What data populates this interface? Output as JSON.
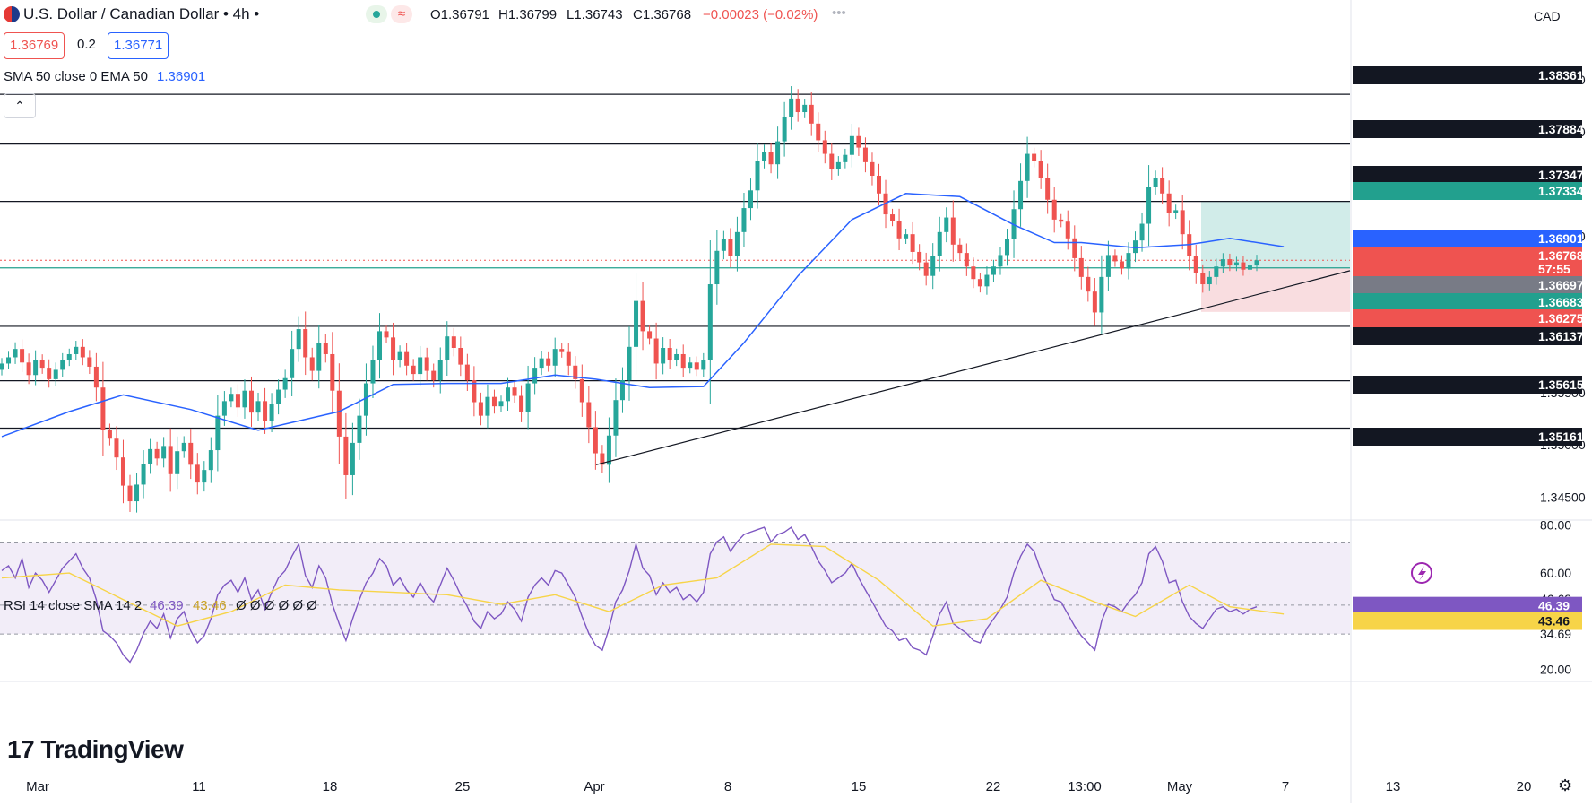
{
  "header": {
    "title": "U.S. Dollar / Canadian Dollar • 4h •",
    "ohlc": {
      "open": "O1.36791",
      "high": "H1.36799",
      "low": "L1.36743",
      "close": "C1.36768",
      "change": "−0.00023 (−0.02%)"
    },
    "more": "•••",
    "bid": "1.36769",
    "spread": "0.2",
    "ask": "1.36771",
    "indicator_label": "SMA 50 close 0 EMA 50",
    "indicator_value": "1.36901",
    "currency": "CAD"
  },
  "logo": "TradingView",
  "colors": {
    "up": "#26a69a",
    "down": "#ef5350",
    "ma": "#2962ff",
    "rsi": "#7e57c2",
    "rsi_ma": "#f7d448",
    "target_zone": "#b2dfdb",
    "stop_zone": "#f8d7da"
  },
  "icons": [
    "flag-icon",
    "live-status-icon",
    "wave-icon",
    "chevron-up-icon",
    "lightning-icon",
    "gear-icon"
  ],
  "chart_data": [
    {
      "type": "candlestick",
      "title": "U.S. Dollar / Canadian Dollar • 4h",
      "ylim": [
        1.3428,
        1.3868
      ],
      "y_ticks": [
        "1.38500",
        "1.38000",
        "1.37000",
        "1.35500",
        "1.35000",
        "1.34500"
      ],
      "x_labels": [
        "Mar",
        "11",
        "18",
        "25",
        "Apr",
        "8",
        "15",
        "22",
        "13:00",
        "May",
        "7",
        "13",
        "20"
      ],
      "closes": [
        1.3578,
        1.3584,
        1.3592,
        1.3579,
        1.3567,
        1.3581,
        1.3574,
        1.3563,
        1.3572,
        1.3581,
        1.3587,
        1.3594,
        1.3584,
        1.3575,
        1.3555,
        1.3514,
        1.3506,
        1.3488,
        1.3461,
        1.3446,
        1.3462,
        1.3482,
        1.3496,
        1.3487,
        1.3499,
        1.3472,
        1.3494,
        1.3502,
        1.3481,
        1.3464,
        1.3476,
        1.3495,
        1.3528,
        1.3542,
        1.3549,
        1.3536,
        1.3552,
        1.3531,
        1.3542,
        1.3523,
        1.3539,
        1.3553,
        1.3564,
        1.3592,
        1.3611,
        1.3584,
        1.3571,
        1.3598,
        1.3587,
        1.3552,
        1.3508,
        1.3471,
        1.3502,
        1.3528,
        1.3559,
        1.3581,
        1.3609,
        1.3603,
        1.3581,
        1.3589,
        1.3576,
        1.3568,
        1.3584,
        1.3571,
        1.3562,
        1.3581,
        1.3604,
        1.3593,
        1.3577,
        1.3562,
        1.3541,
        1.3528,
        1.3546,
        1.3537,
        1.3542,
        1.3555,
        1.3547,
        1.3532,
        1.3559,
        1.3574,
        1.3583,
        1.3576,
        1.3592,
        1.3589,
        1.3576,
        1.3563,
        1.3541,
        1.3517,
        1.3492,
        1.3481,
        1.3509,
        1.3543,
        1.3562,
        1.3594,
        1.3638,
        1.3609,
        1.3602,
        1.3578,
        1.3593,
        1.3581,
        1.3587,
        1.3574,
        1.3579,
        1.3572,
        1.3581,
        1.3654,
        1.3686,
        1.3697,
        1.3681,
        1.3704,
        1.3727,
        1.3744,
        1.3772,
        1.3781,
        1.3769,
        1.3791,
        1.3814,
        1.3832,
        1.3819,
        1.3826,
        1.3808,
        1.3792,
        1.3779,
        1.3764,
        1.3771,
        1.3778,
        1.3796,
        1.3785,
        1.3771,
        1.3758,
        1.3741,
        1.3721,
        1.3715,
        1.3698,
        1.3702,
        1.3685,
        1.3675,
        1.3662,
        1.3681,
        1.3704,
        1.3718,
        1.3692,
        1.3684,
        1.3671,
        1.3659,
        1.3652,
        1.3663,
        1.3671,
        1.3682,
        1.3697,
        1.3726,
        1.3753,
        1.3779,
        1.3772,
        1.3756,
        1.3735,
        1.3716,
        1.3714,
        1.3698,
        1.3679,
        1.3661,
        1.3647,
        1.3627,
        1.3661,
        1.3682,
        1.3676,
        1.3669,
        1.3684,
        1.3696,
        1.3712,
        1.3747,
        1.3756,
        1.3741,
        1.3722,
        1.3725,
        1.3702,
        1.3681,
        1.3665,
        1.3654,
        1.3661,
        1.3671,
        1.3678,
        1.3672,
        1.3675,
        1.3668,
        1.3672,
        1.3677
      ],
      "sma50_anchor_points": [
        [
          0,
          1.3508
        ],
        [
          10,
          1.3532
        ],
        [
          18,
          1.3548
        ],
        [
          28,
          1.3534
        ],
        [
          38,
          1.3514
        ],
        [
          50,
          1.3532
        ],
        [
          58,
          1.3558
        ],
        [
          66,
          1.3559
        ],
        [
          74,
          1.3559
        ],
        [
          82,
          1.3567
        ],
        [
          88,
          1.3563
        ],
        [
          96,
          1.3555
        ],
        [
          104,
          1.3556
        ],
        [
          110,
          1.3598
        ],
        [
          118,
          1.3662
        ],
        [
          126,
          1.3716
        ],
        [
          134,
          1.3741
        ],
        [
          142,
          1.3738
        ],
        [
          150,
          1.3711
        ],
        [
          156,
          1.3694
        ],
        [
          160,
          1.3694
        ],
        [
          168,
          1.3689
        ],
        [
          176,
          1.3692
        ],
        [
          182,
          1.3698
        ],
        [
          190,
          1.369
        ]
      ],
      "levels": [
        "1.38361",
        "1.37884",
        "1.37334",
        "1.36697",
        "1.36137",
        "1.35615",
        "1.35161"
      ],
      "trendline": [
        [
          1.3481,
          "Apr 5"
        ],
        [
          1.3667,
          "May 16"
        ]
      ],
      "position": {
        "target": "1.37334",
        "entry": "1.36697",
        "stop": "1.36275"
      },
      "axis_badges": [
        {
          "label": "1.38361",
          "bg": "#131722"
        },
        {
          "label": "1.37884",
          "bg": "#131722"
        },
        {
          "label": "1.37347",
          "bg": "#131722"
        },
        {
          "label": "1.37334",
          "bg": "#22a08e"
        },
        {
          "label": "1.36901",
          "bg": "#2962ff"
        },
        {
          "label": "1.36768",
          "bg": "#ef5350"
        },
        {
          "label": "57:55",
          "bg": "#ef5350"
        },
        {
          "label": "1.36697",
          "bg": "#787b86"
        },
        {
          "label": "1.36683",
          "bg": "#22a08e"
        },
        {
          "label": "1.36275",
          "bg": "#ef5350"
        },
        {
          "label": "1.36137",
          "bg": "#131722"
        },
        {
          "label": "1.35615",
          "bg": "#131722"
        },
        {
          "label": "1.35161",
          "bg": "#131722"
        }
      ]
    },
    {
      "type": "line",
      "title": "RSI 14 close SMA 14 2",
      "rsi_value": "46.39",
      "rsi_ma_value": "43.46",
      "placeholders": "Ø Ø Ø Ø Ø Ø",
      "ylim": [
        15,
        82
      ],
      "y_ticks": [
        "80.00",
        "60.00",
        "20.00"
      ],
      "band": [
        34.69,
        72.5
      ],
      "mid_line": 46.68,
      "tick_badges": {
        "upper_mid": "46.68",
        "lower": "34.69"
      },
      "rsi_values": [
        61,
        63,
        58,
        66,
        54,
        60,
        57,
        52,
        57,
        62,
        65,
        68,
        62,
        58,
        49,
        36,
        34,
        31,
        26,
        23,
        28,
        35,
        40,
        37,
        43,
        33,
        41,
        44,
        36,
        31,
        34,
        41,
        51,
        55,
        57,
        52,
        58,
        49,
        53,
        45,
        52,
        58,
        61,
        67,
        72,
        59,
        54,
        63,
        58,
        47,
        39,
        32,
        41,
        49,
        56,
        60,
        66,
        63,
        55,
        58,
        53,
        50,
        56,
        51,
        48,
        55,
        62,
        57,
        51,
        46,
        40,
        37,
        44,
        41,
        43,
        48,
        45,
        40,
        50,
        55,
        58,
        55,
        61,
        60,
        55,
        50,
        42,
        35,
        30,
        28,
        37,
        48,
        53,
        61,
        72,
        62,
        59,
        51,
        56,
        52,
        54,
        49,
        51,
        48,
        52,
        68,
        73,
        75,
        69,
        73,
        76,
        77,
        78,
        79,
        73,
        76,
        77,
        79,
        74,
        76,
        71,
        65,
        61,
        56,
        58,
        60,
        64,
        58,
        53,
        48,
        43,
        38,
        36,
        32,
        33,
        29,
        28,
        26,
        34,
        43,
        48,
        39,
        37,
        35,
        32,
        31,
        37,
        41,
        45,
        50,
        60,
        67,
        72,
        69,
        61,
        55,
        49,
        48,
        43,
        38,
        34,
        31,
        28,
        40,
        47,
        46,
        44,
        48,
        51,
        56,
        68,
        71,
        65,
        56,
        57,
        48,
        42,
        39,
        37,
        41,
        45,
        46,
        44,
        45,
        43,
        45,
        46
      ],
      "rsi_ma_anchor_points": [
        [
          0,
          58
        ],
        [
          10,
          60
        ],
        [
          18,
          49
        ],
        [
          26,
          38
        ],
        [
          34,
          44
        ],
        [
          42,
          55
        ],
        [
          50,
          53
        ],
        [
          58,
          52
        ],
        [
          66,
          51
        ],
        [
          74,
          47
        ],
        [
          82,
          51
        ],
        [
          90,
          44
        ],
        [
          98,
          55
        ],
        [
          106,
          58
        ],
        [
          114,
          72
        ],
        [
          122,
          71
        ],
        [
          130,
          57
        ],
        [
          138,
          38
        ],
        [
          146,
          41
        ],
        [
          154,
          57
        ],
        [
          162,
          48
        ],
        [
          168,
          42
        ],
        [
          176,
          55
        ],
        [
          182,
          46
        ],
        [
          190,
          43
        ]
      ]
    }
  ]
}
